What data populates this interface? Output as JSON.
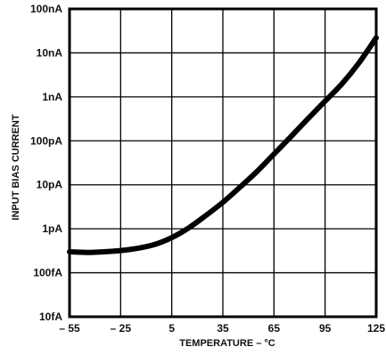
{
  "chart_data": {
    "type": "line",
    "title": "",
    "xlabel": "TEMPERATURE – °C",
    "ylabel": "INPUT BIAS CURRENT",
    "x_ticks": [
      -55,
      -25,
      5,
      35,
      65,
      95,
      125
    ],
    "x_tick_labels": [
      "– 55",
      "– 25",
      "5",
      "35",
      "65",
      "95",
      "125"
    ],
    "xlim": [
      -55,
      125
    ],
    "y_scale": "log",
    "y_unit": "A",
    "y_ticks": [
      1e-14,
      1e-13,
      1e-12,
      1e-11,
      1e-10,
      1e-09,
      1e-08,
      1e-07
    ],
    "y_tick_labels": [
      "10fA",
      "100fA",
      "1pA",
      "10pA",
      "100pA",
      "1nA",
      "10nA",
      "100nA"
    ],
    "ylim": [
      1e-14,
      1e-07
    ],
    "grid": true,
    "legend": "none",
    "series": [
      {
        "x": [
          -55,
          -45,
          -35,
          -25,
          -15,
          -5,
          5,
          15,
          25,
          35,
          45,
          55,
          65,
          75,
          85,
          95,
          105,
          115,
          125
        ],
        "y": [
          3e-13,
          2.9e-13,
          3e-13,
          3.2e-13,
          3.6e-13,
          4.4e-13,
          6.3e-13,
          1.05e-12,
          2e-12,
          4e-12,
          8.8e-12,
          2e-11,
          5e-11,
          1.25e-10,
          3.2e-10,
          8e-10,
          2e-09,
          6e-09,
          2.2e-08
        ]
      }
    ]
  }
}
